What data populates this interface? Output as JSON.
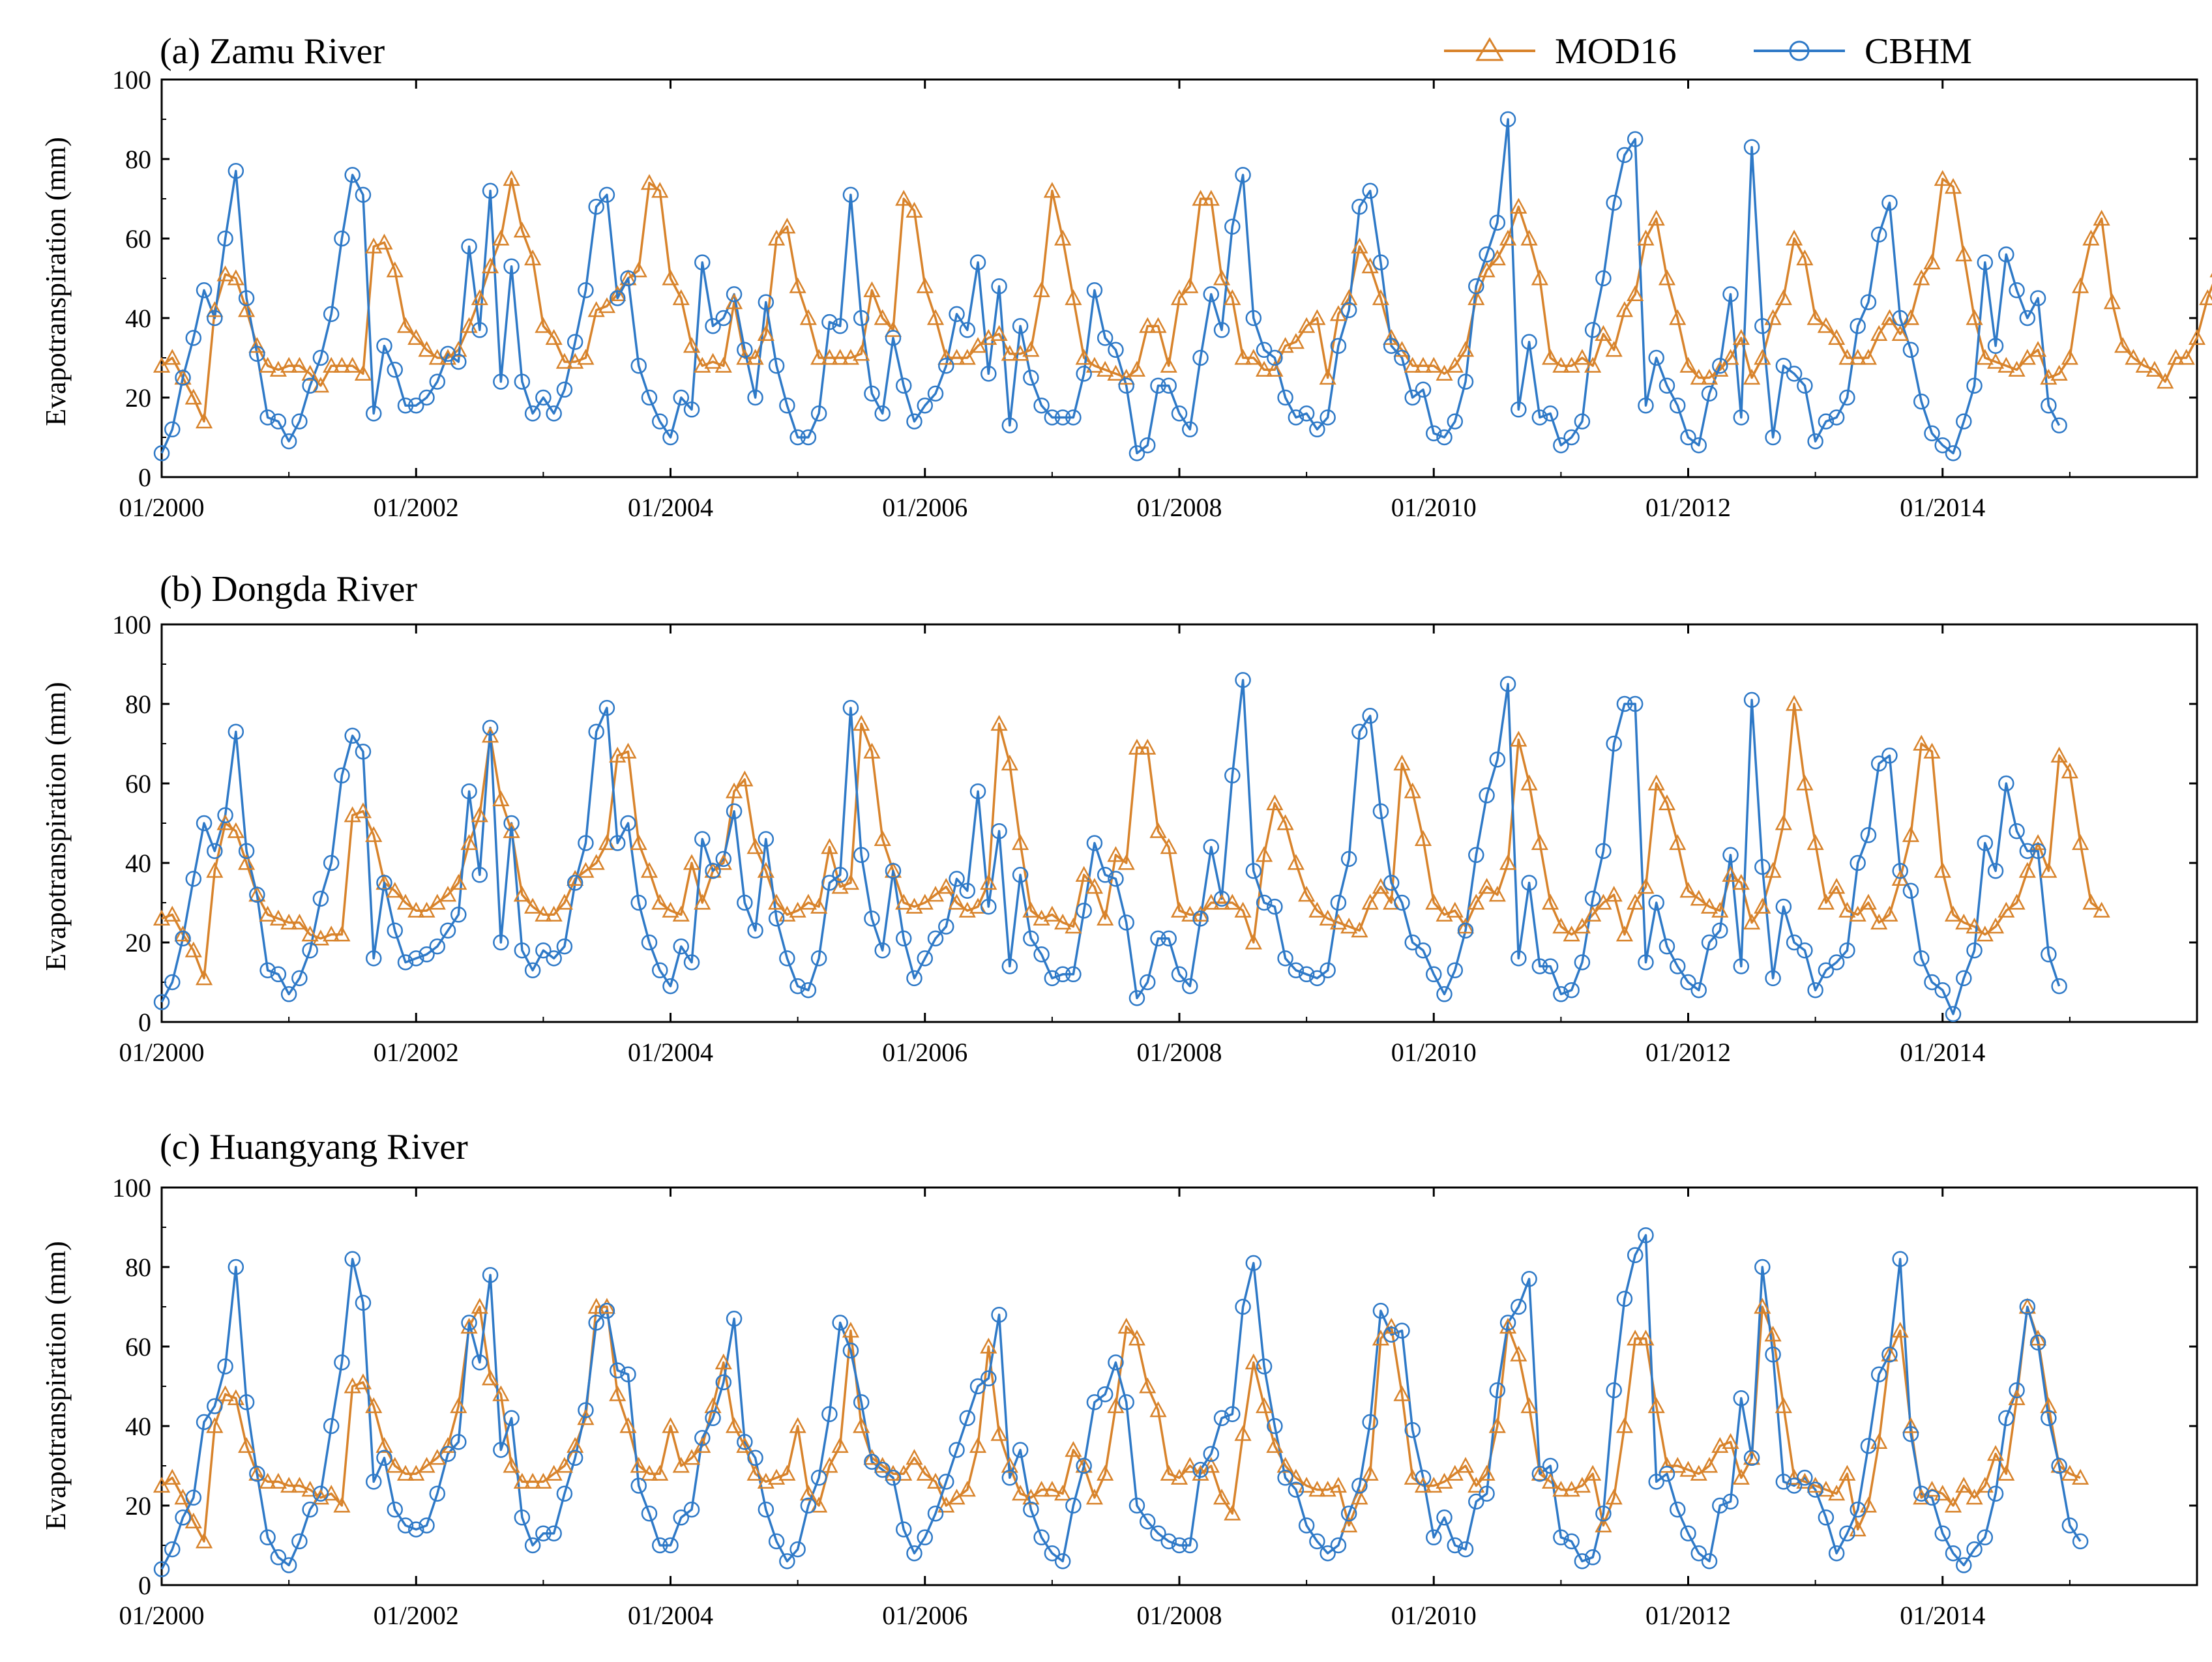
{
  "legend": [
    {
      "label": "MOD16",
      "color": "#D8832B",
      "marker": "triangle-icon"
    },
    {
      "label": "CBHM",
      "color": "#2E79C7",
      "marker": "circle-icon"
    }
  ],
  "x_ticks": [
    "01/2000",
    "01/2002",
    "01/2004",
    "01/2006",
    "01/2008",
    "01/2010",
    "01/2012",
    "01/2014"
  ],
  "y_ticks": [
    "0",
    "20",
    "40",
    "60",
    "80",
    "100"
  ],
  "ylabel": "Evapotranspiration (mm)",
  "chart_data": [
    {
      "type": "line",
      "title": "(a) Zamu River",
      "xlabel": "",
      "ylabel": "Evapotranspiration (mm)",
      "x_start": "01/2000",
      "x_unit": "month",
      "xlim": [
        "01/2000",
        "12/2015"
      ],
      "ylim": [
        0,
        100
      ],
      "grid": false,
      "legend_position": "top-right",
      "series": [
        {
          "name": "MOD16",
          "values": [
            28,
            30,
            25,
            20,
            14,
            42,
            51,
            50,
            42,
            33,
            28,
            27,
            28,
            28,
            26,
            23,
            28,
            28,
            28,
            26,
            58,
            59,
            52,
            38,
            35,
            32,
            30,
            30,
            32,
            38,
            45,
            53,
            60,
            75,
            62,
            55,
            38,
            35,
            29,
            29,
            30,
            42,
            43,
            46,
            50,
            52,
            74,
            72,
            50,
            45,
            33,
            28,
            29,
            28,
            44,
            30,
            30,
            36,
            60,
            63,
            48,
            40,
            30,
            30,
            30,
            30,
            31,
            47,
            40,
            37,
            70,
            67,
            48,
            40,
            30,
            30,
            30,
            33,
            35,
            36,
            31,
            31,
            32,
            47,
            72,
            60,
            45,
            30,
            28,
            27,
            26,
            25,
            27,
            38,
            38,
            28,
            45,
            48,
            70,
            70,
            50,
            45,
            30,
            30,
            27,
            27,
            33,
            34,
            38,
            40,
            25,
            41,
            45,
            58,
            53,
            45,
            35,
            32,
            28,
            28,
            28,
            26,
            28,
            32,
            45,
            52,
            55,
            60,
            68,
            60,
            50,
            30,
            28,
            28,
            30,
            28,
            36,
            32,
            42,
            46,
            60,
            65,
            50,
            40,
            28,
            25,
            25,
            27,
            30,
            35,
            25,
            30,
            40,
            45,
            60,
            55,
            40,
            38,
            35,
            30,
            30,
            30,
            36,
            40,
            36,
            40,
            50,
            54,
            75,
            73,
            56,
            40,
            30,
            29,
            28,
            27,
            30,
            32,
            25,
            26,
            30,
            48,
            60,
            65,
            44,
            33,
            30,
            28,
            27,
            24,
            30,
            30,
            35,
            45,
            52,
            55,
            52,
            68,
            67,
            50,
            40,
            35,
            30,
            23
          ]
        },
        {
          "name": "CBHM",
          "values": [
            6,
            12,
            25,
            35,
            47,
            40,
            60,
            77,
            45,
            31,
            15,
            14,
            9,
            14,
            23,
            30,
            41,
            60,
            76,
            71,
            16,
            33,
            27,
            18,
            18,
            20,
            24,
            31,
            29,
            58,
            37,
            72,
            24,
            53,
            24,
            16,
            20,
            16,
            22,
            34,
            47,
            68,
            71,
            45,
            50,
            28,
            20,
            14,
            10,
            20,
            17,
            54,
            38,
            40,
            46,
            32,
            20,
            44,
            28,
            18,
            10,
            10,
            16,
            39,
            38,
            71,
            40,
            21,
            16,
            35,
            23,
            14,
            18,
            21,
            28,
            41,
            37,
            54,
            26,
            48,
            13,
            38,
            25,
            18,
            15,
            15,
            15,
            26,
            47,
            35,
            32,
            23,
            6,
            8,
            23,
            23,
            16,
            12,
            30,
            46,
            37,
            63,
            76,
            40,
            32,
            30,
            20,
            15,
            16,
            12,
            15,
            33,
            42,
            68,
            72,
            54,
            33,
            30,
            20,
            22,
            11,
            10,
            14,
            24,
            48,
            56,
            64,
            90,
            17,
            34,
            15,
            16,
            8,
            10,
            14,
            37,
            50,
            69,
            81,
            85,
            18,
            30,
            23,
            18,
            10,
            8,
            21,
            28,
            46,
            15,
            83,
            38,
            10,
            28,
            26,
            23,
            9,
            14,
            15,
            20,
            38,
            44,
            61,
            69,
            40,
            32,
            19,
            11,
            8,
            6,
            14,
            23,
            54,
            33,
            56,
            47,
            40,
            45,
            18,
            13
          ]
        }
      ]
    },
    {
      "type": "line",
      "title": "(b) Dongda River",
      "xlabel": "",
      "ylabel": "Evapotranspiration (mm)",
      "x_start": "01/2000",
      "x_unit": "month",
      "xlim": [
        "01/2000",
        "12/2015"
      ],
      "ylim": [
        0,
        100
      ],
      "grid": false,
      "legend_position": "none",
      "series": [
        {
          "name": "MOD16",
          "values": [
            26,
            27,
            22,
            18,
            11,
            38,
            50,
            48,
            40,
            32,
            27,
            26,
            25,
            25,
            22,
            21,
            22,
            22,
            52,
            53,
            47,
            35,
            33,
            30,
            28,
            28,
            30,
            32,
            35,
            45,
            52,
            72,
            56,
            48,
            32,
            29,
            27,
            27,
            30,
            36,
            38,
            40,
            45,
            67,
            68,
            45,
            38,
            30,
            28,
            27,
            40,
            30,
            38,
            40,
            58,
            61,
            44,
            38,
            30,
            27,
            28,
            30,
            29,
            44,
            34,
            35,
            75,
            68,
            46,
            38,
            30,
            29,
            30,
            32,
            34,
            30,
            28,
            29,
            35,
            75,
            65,
            45,
            28,
            26,
            27,
            25,
            24,
            37,
            34,
            26,
            42,
            40,
            69,
            69,
            48,
            44,
            28,
            27,
            27,
            30,
            30,
            30,
            28,
            20,
            42,
            55,
            50,
            40,
            32,
            28,
            26,
            25,
            24,
            23,
            30,
            34,
            30,
            65,
            58,
            46,
            30,
            27,
            28,
            24,
            30,
            34,
            32,
            40,
            71,
            60,
            45,
            30,
            24,
            22,
            24,
            27,
            30,
            32,
            22,
            30,
            34,
            60,
            55,
            45,
            33,
            31,
            29,
            28,
            37,
            35,
            25,
            29,
            38,
            50,
            80,
            60,
            45,
            30,
            34,
            28,
            27,
            30,
            25,
            27,
            36,
            47,
            70,
            68,
            38,
            27,
            25,
            24,
            22,
            24,
            28,
            30,
            38,
            45,
            38,
            67,
            63,
            45,
            30,
            28
          ]
        },
        {
          "name": "CBHM",
          "values": [
            5,
            10,
            21,
            36,
            50,
            43,
            52,
            73,
            43,
            32,
            13,
            12,
            7,
            11,
            18,
            31,
            40,
            62,
            72,
            68,
            16,
            35,
            23,
            15,
            16,
            17,
            19,
            23,
            27,
            58,
            37,
            74,
            20,
            50,
            18,
            13,
            18,
            16,
            19,
            35,
            45,
            73,
            79,
            45,
            50,
            30,
            20,
            13,
            9,
            19,
            15,
            46,
            38,
            41,
            53,
            30,
            23,
            46,
            26,
            16,
            9,
            8,
            16,
            35,
            37,
            79,
            42,
            26,
            18,
            38,
            21,
            11,
            16,
            21,
            24,
            36,
            33,
            58,
            29,
            48,
            14,
            37,
            21,
            17,
            11,
            12,
            12,
            28,
            45,
            37,
            36,
            25,
            6,
            10,
            21,
            21,
            12,
            9,
            26,
            44,
            31,
            62,
            86,
            38,
            30,
            29,
            16,
            13,
            12,
            11,
            13,
            30,
            41,
            73,
            77,
            53,
            35,
            30,
            20,
            18,
            12,
            7,
            13,
            23,
            42,
            57,
            66,
            85,
            16,
            35,
            14,
            14,
            7,
            8,
            15,
            31,
            43,
            70,
            80,
            80,
            15,
            30,
            19,
            14,
            10,
            8,
            20,
            23,
            42,
            14,
            81,
            39,
            11,
            29,
            20,
            18,
            8,
            13,
            15,
            18,
            40,
            47,
            65,
            67,
            38,
            33,
            16,
            10,
            8,
            2,
            11,
            18,
            45,
            38,
            60,
            48,
            43,
            43,
            17,
            9
          ]
        }
      ]
    },
    {
      "type": "line",
      "title": "(c) Huangyang River",
      "xlabel": "",
      "ylabel": "Evapotranspiration (mm)",
      "x_start": "01/2000",
      "x_unit": "month",
      "xlim": [
        "01/2000",
        "12/2015"
      ],
      "ylim": [
        0,
        100
      ],
      "grid": false,
      "legend_position": "none",
      "series": [
        {
          "name": "MOD16",
          "values": [
            25,
            27,
            22,
            16,
            11,
            40,
            48,
            47,
            35,
            28,
            26,
            26,
            25,
            25,
            24,
            22,
            23,
            20,
            50,
            51,
            45,
            35,
            30,
            28,
            28,
            30,
            32,
            35,
            45,
            65,
            70,
            52,
            48,
            30,
            26,
            26,
            26,
            28,
            30,
            35,
            42,
            70,
            70,
            48,
            40,
            30,
            28,
            28,
            40,
            30,
            32,
            35,
            45,
            56,
            40,
            35,
            28,
            26,
            27,
            28,
            40,
            23,
            20,
            30,
            35,
            64,
            40,
            32,
            30,
            28,
            28,
            32,
            28,
            26,
            20,
            22,
            24,
            35,
            60,
            38,
            30,
            23,
            22,
            24,
            24,
            23,
            34,
            30,
            22,
            28,
            45,
            65,
            62,
            50,
            44,
            28,
            27,
            30,
            28,
            30,
            22,
            18,
            38,
            56,
            45,
            35,
            30,
            27,
            25,
            24,
            24,
            25,
            15,
            22,
            28,
            62,
            65,
            48,
            27,
            25,
            25,
            26,
            28,
            30,
            25,
            28,
            40,
            65,
            58,
            45,
            28,
            26,
            24,
            24,
            25,
            28,
            15,
            22,
            40,
            62,
            62,
            45,
            30,
            30,
            29,
            28,
            30,
            35,
            36,
            27,
            32,
            70,
            63,
            45,
            27,
            26,
            25,
            24,
            23,
            28,
            14,
            20,
            36,
            58,
            64,
            40,
            22,
            24,
            23,
            20,
            25,
            22,
            25,
            33,
            28,
            47,
            70,
            62,
            45,
            30,
            28,
            27
          ]
        },
        {
          "name": "CBHM",
          "values": [
            4,
            9,
            17,
            22,
            41,
            45,
            55,
            80,
            46,
            28,
            12,
            7,
            5,
            11,
            19,
            23,
            40,
            56,
            82,
            71,
            26,
            32,
            19,
            15,
            14,
            15,
            23,
            33,
            36,
            66,
            56,
            78,
            34,
            42,
            17,
            10,
            13,
            13,
            23,
            32,
            44,
            66,
            69,
            54,
            53,
            25,
            18,
            10,
            10,
            17,
            19,
            37,
            42,
            51,
            67,
            36,
            32,
            19,
            11,
            6,
            9,
            20,
            27,
            43,
            66,
            59,
            46,
            31,
            29,
            27,
            14,
            8,
            12,
            18,
            26,
            34,
            42,
            50,
            52,
            68,
            27,
            34,
            19,
            12,
            8,
            6,
            20,
            30,
            46,
            48,
            56,
            46,
            20,
            16,
            13,
            11,
            10,
            10,
            29,
            33,
            42,
            43,
            70,
            81,
            55,
            40,
            27,
            24,
            15,
            11,
            8,
            10,
            18,
            25,
            41,
            69,
            63,
            64,
            39,
            27,
            12,
            17,
            10,
            9,
            21,
            23,
            49,
            66,
            70,
            77,
            28,
            30,
            12,
            11,
            6,
            7,
            18,
            49,
            72,
            83,
            88,
            26,
            28,
            19,
            13,
            8,
            6,
            20,
            21,
            47,
            32,
            80,
            58,
            26,
            25,
            27,
            24,
            17,
            8,
            13,
            19,
            35,
            53,
            58,
            82,
            38,
            23,
            22,
            13,
            8,
            5,
            9,
            12,
            23,
            42,
            49,
            70,
            61,
            42,
            30,
            15,
            11
          ]
        }
      ]
    }
  ]
}
